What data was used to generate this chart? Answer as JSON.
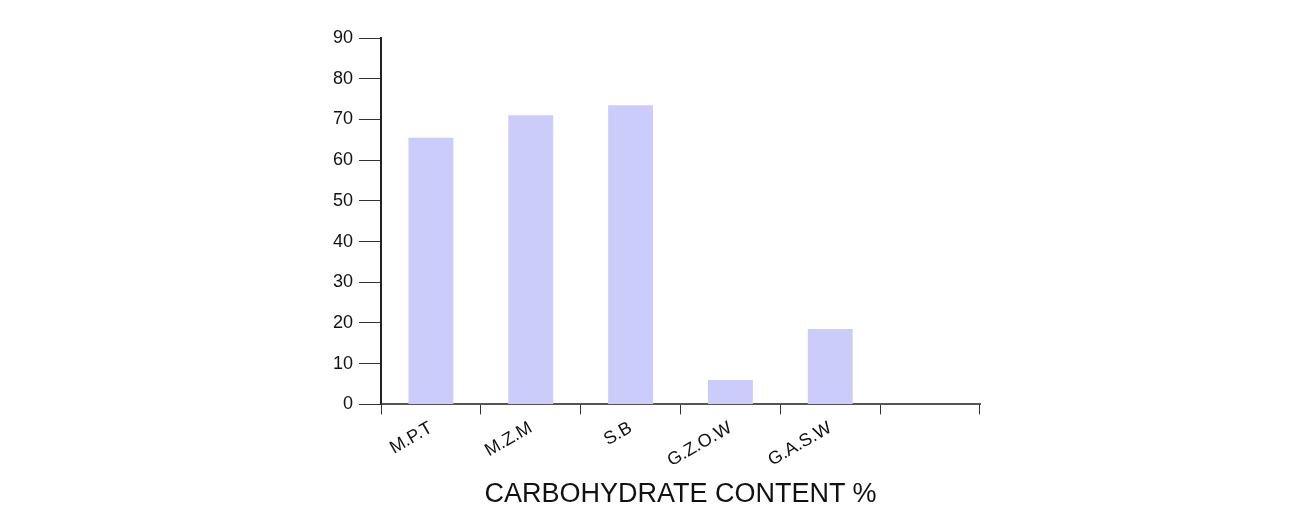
{
  "chart_data": {
    "type": "bar",
    "xlabel": "CARBOHYDRATE CONTENT %",
    "categories": [
      "M.P.T",
      "M.Z.M",
      "S.B",
      "G.Z.O.W",
      "G.A.S.W",
      null
    ],
    "values": [
      65.5,
      71,
      73.5,
      6,
      18.5,
      null
    ],
    "color": "#ccccfa",
    "ylim": [
      0,
      90
    ],
    "yticks": [
      0,
      10,
      20,
      30,
      40,
      50,
      60,
      70,
      80,
      90
    ],
    "grid": false,
    "legend": false
  }
}
